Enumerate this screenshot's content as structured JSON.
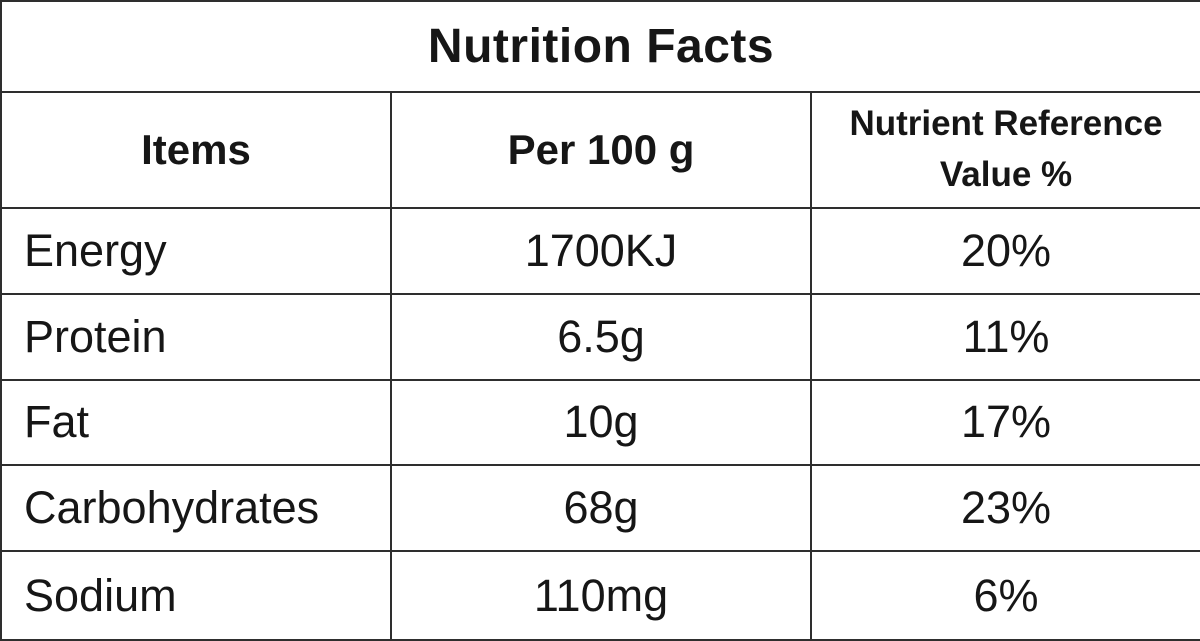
{
  "table": {
    "title": "Nutrition Facts",
    "columns": {
      "items": "Items",
      "per100g": "Per 100 g",
      "nrv": "Nutrient Reference Value %"
    },
    "rows": [
      {
        "item": "Energy",
        "per100g": "1700KJ",
        "nrv": "20%"
      },
      {
        "item": "Protein",
        "per100g": "6.5g",
        "nrv": "11%"
      },
      {
        "item": "Fat",
        "per100g": "10g",
        "nrv": "17%"
      },
      {
        "item": "Carbohydrates",
        "per100g": "68g",
        "nrv": "23%"
      },
      {
        "item": "Sodium",
        "per100g": "110mg",
        "nrv": "6%"
      }
    ],
    "colors": {
      "border": "#2e2e2e",
      "text": "#161616",
      "background": "#ffffff"
    }
  },
  "chart_data": {
    "type": "table",
    "title": "Nutrition Facts",
    "columns": [
      "Items",
      "Per 100 g",
      "Nutrient Reference Value %"
    ],
    "rows": [
      [
        "Energy",
        "1700KJ",
        "20%"
      ],
      [
        "Protein",
        "6.5g",
        "11%"
      ],
      [
        "Fat",
        "10g",
        "17%"
      ],
      [
        "Carbohydrates",
        "68g",
        "23%"
      ],
      [
        "Sodium",
        "110mg",
        "6%"
      ]
    ]
  }
}
